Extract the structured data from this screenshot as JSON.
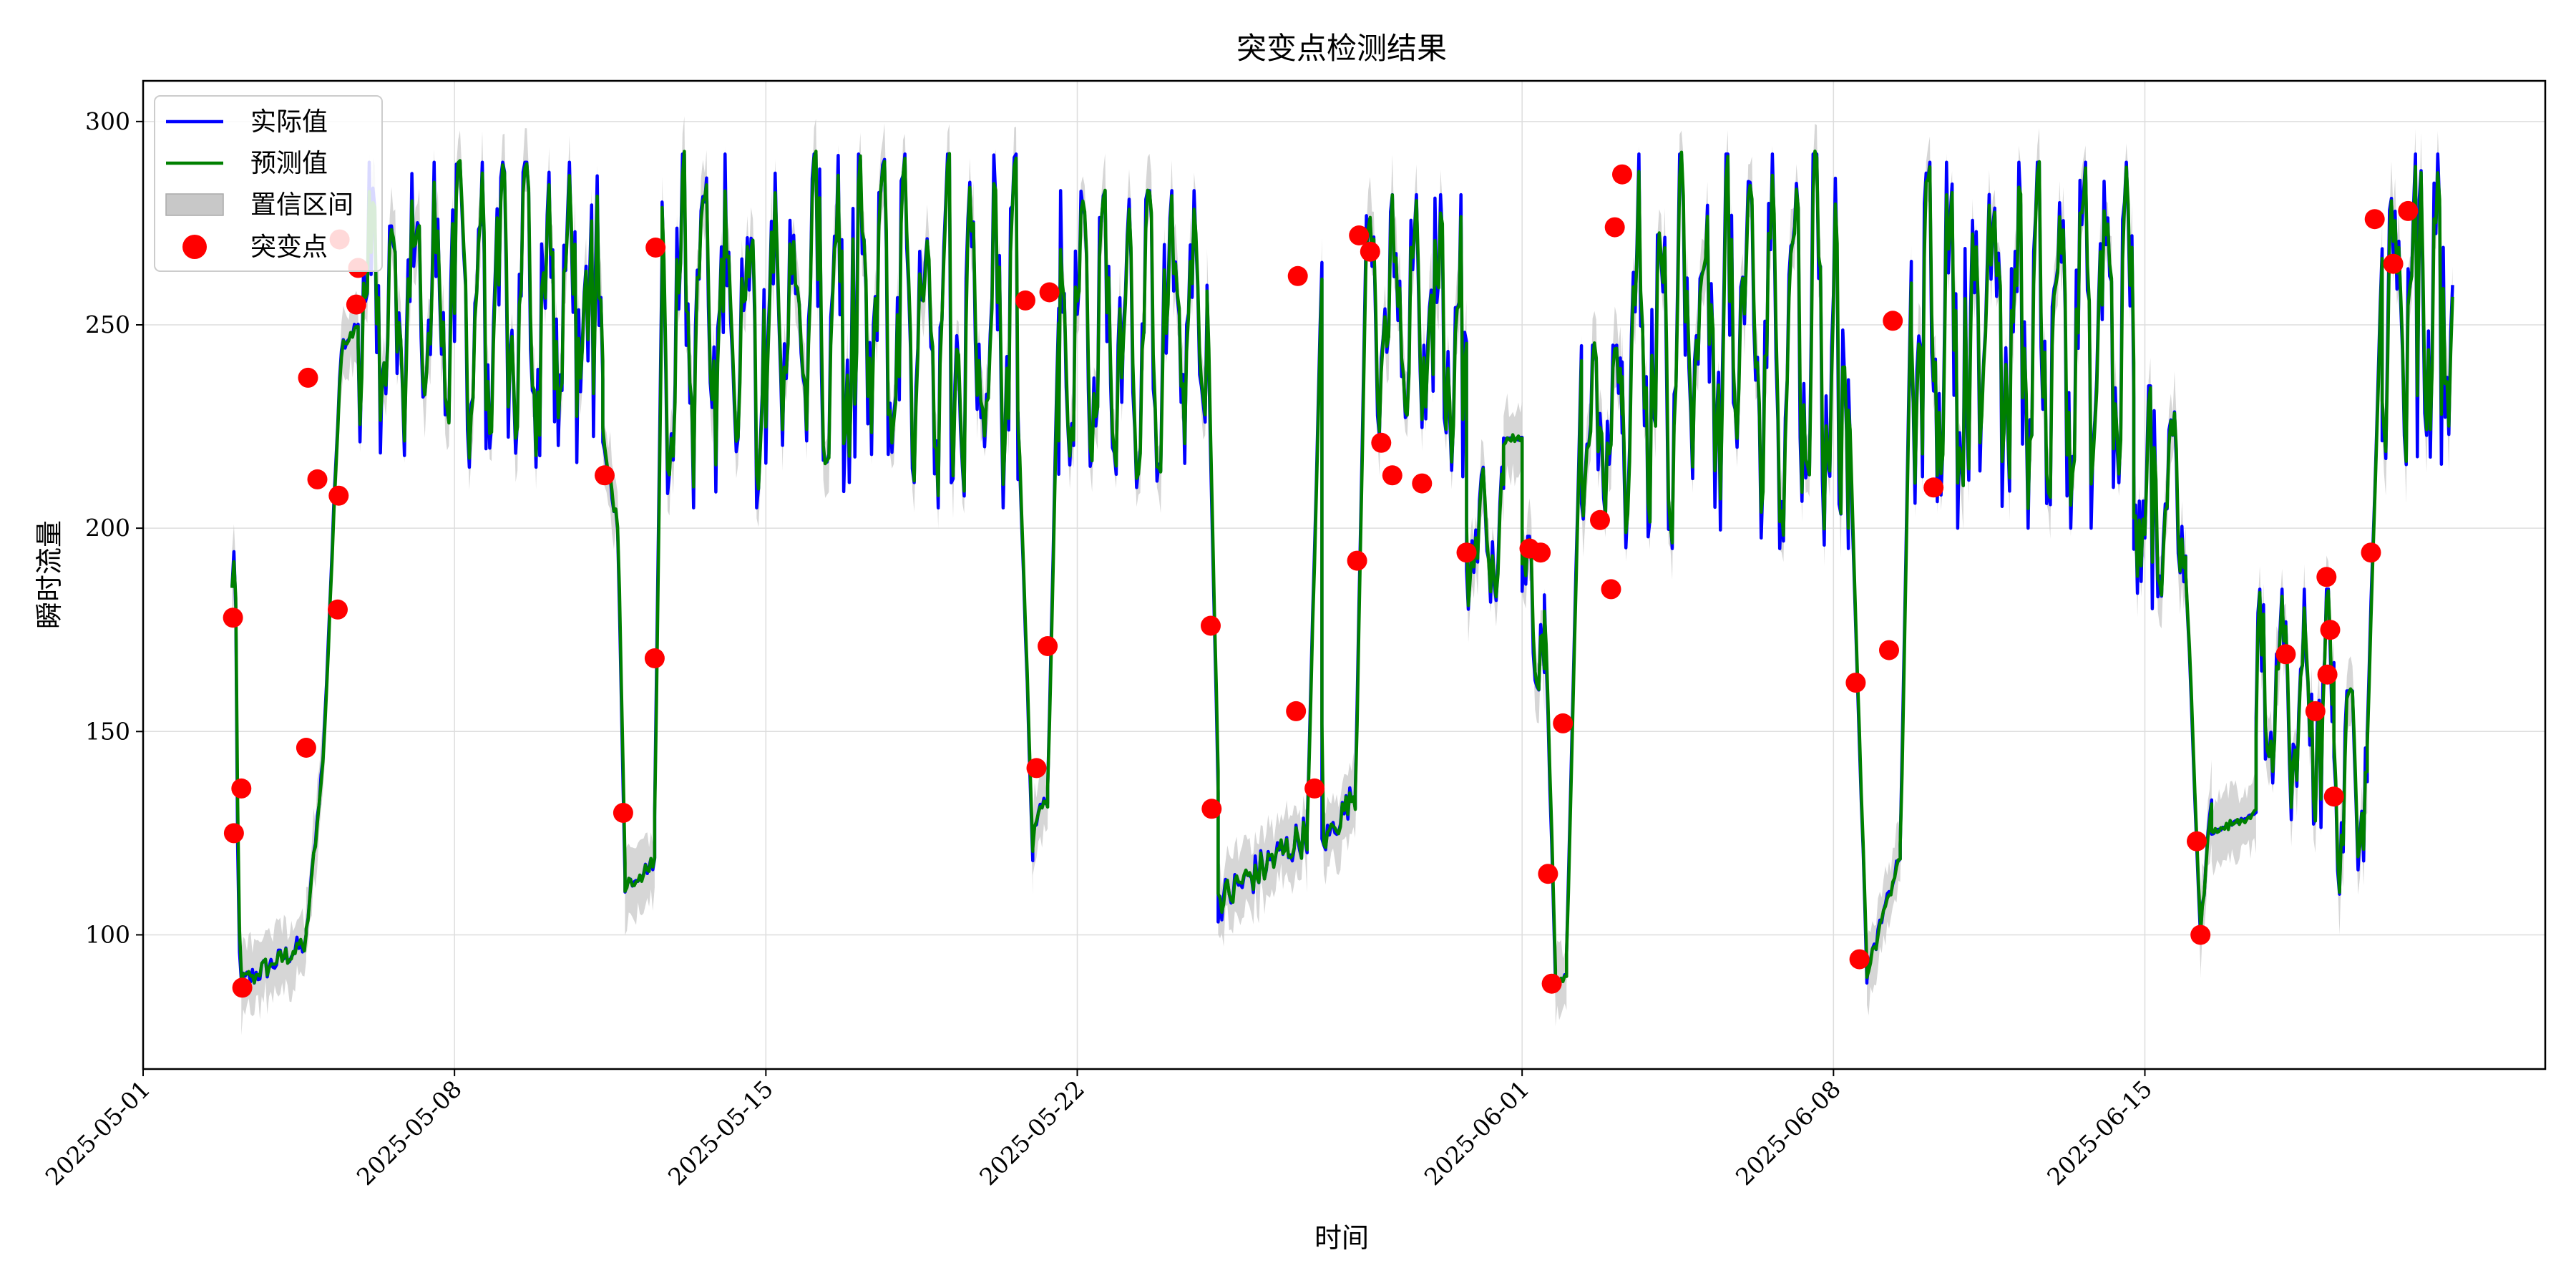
{
  "chart_data": {
    "type": "line",
    "title": "突变点检测结果",
    "xlabel": "时间",
    "ylabel": "瞬时流量",
    "xlim": [
      "2025-05-01",
      "2025-06-24"
    ],
    "ylim": [
      67,
      310
    ],
    "xticks": [
      "2025-05-01",
      "2025-05-08",
      "2025-05-15",
      "2025-05-22",
      "2025-06-01",
      "2025-06-08",
      "2025-06-15"
    ],
    "yticks": [
      100,
      150,
      200,
      250,
      300
    ],
    "grid": true,
    "legend": {
      "placement": "top-left",
      "entries": [
        "实际值",
        "预测值",
        "置信区间",
        "突变点"
      ]
    },
    "colors": {
      "actual": "#0000ff",
      "predicted": "#008000",
      "band": "#c8c8c8",
      "changepoint": "#ff0000"
    },
    "segments": [
      [
        "2025-05-03T00:00",
        "2025-05-03T05:00",
        "drop",
        [
          185,
          195,
          180,
          120,
          95,
          88
        ]
      ],
      [
        "2025-05-03T05:00",
        "2025-05-04T16:00",
        "low",
        [
          88,
          98
        ]
      ],
      [
        "2025-05-04T16:00",
        "2025-05-05T20:00",
        "ramp",
        [
          100,
          145,
          245,
          250
        ]
      ],
      [
        "2025-05-05T20:00",
        "2025-05-11T08:00",
        "osc",
        [
          215,
          290
        ]
      ],
      [
        "2025-05-11T08:00",
        "2025-05-11T20:00",
        "ramp",
        [
          220,
          212,
          200,
          115
        ]
      ],
      [
        "2025-05-11T20:00",
        "2025-05-12T12:00",
        "low",
        [
          112,
          118
        ]
      ],
      [
        "2025-05-12T12:00",
        "2025-05-12T16:00",
        "ramp",
        [
          130,
          270
        ]
      ],
      [
        "2025-05-12T16:00",
        "2025-05-20T16:00",
        "osc",
        [
          205,
          292
        ]
      ],
      [
        "2025-05-20T16:00",
        "2025-05-21T00:00",
        "ramp",
        [
          230,
          120
        ]
      ],
      [
        "2025-05-21T00:00",
        "2025-05-21T08:00",
        "low",
        [
          125,
          135
        ]
      ],
      [
        "2025-05-21T08:00",
        "2025-05-21T14:00",
        "ramp",
        [
          135,
          255
        ]
      ],
      [
        "2025-05-21T14:00",
        "2025-05-24T22:00",
        "osc",
        [
          210,
          283
        ]
      ],
      [
        "2025-05-24T22:00",
        "2025-05-25T04:00",
        "ramp",
        [
          260,
          135
        ]
      ],
      [
        "2025-05-25T04:00",
        "2025-05-27T04:00",
        "low",
        [
          108,
          125
        ]
      ],
      [
        "2025-05-27T04:00",
        "2025-05-27T12:00",
        "ramp",
        [
          125,
          265
        ]
      ],
      [
        "2025-05-27T12:00",
        "2025-05-28T06:00",
        "low",
        [
          122,
          135
        ]
      ],
      [
        "2025-05-28T06:00",
        "2025-05-28T12:00",
        "ramp",
        [
          135,
          275
        ]
      ],
      [
        "2025-05-28T12:00",
        "2025-05-30T18:00",
        "osc",
        [
          210,
          282
        ]
      ],
      [
        "2025-05-30T18:00",
        "2025-05-31T14:00",
        "osc",
        [
          180,
          215
        ]
      ],
      [
        "2025-05-31T14:00",
        "2025-06-01T00:00",
        "flat",
        [
          222,
          222
        ]
      ],
      [
        "2025-06-01T00:00",
        "2025-06-01T12:00",
        "osc",
        [
          160,
          198
        ]
      ],
      [
        "2025-06-01T12:00",
        "2025-06-01T18:00",
        "ramp",
        [
          185,
          90
        ]
      ],
      [
        "2025-06-01T18:00",
        "2025-06-02T00:00",
        "low",
        [
          88,
          90
        ]
      ],
      [
        "2025-06-02T00:00",
        "2025-06-02T08:00",
        "ramp",
        [
          95,
          245
        ]
      ],
      [
        "2025-06-02T08:00",
        "2025-06-03T06:00",
        "osc",
        [
          200,
          245
        ]
      ],
      [
        "2025-06-03T06:00",
        "2025-06-08T08:00",
        "osc",
        [
          195,
          292
        ]
      ],
      [
        "2025-06-08T08:00",
        "2025-06-08T18:00",
        "ramp",
        [
          235,
          90
        ]
      ],
      [
        "2025-06-08T18:00",
        "2025-06-09T12:00",
        "ramp",
        [
          90,
          120
        ]
      ],
      [
        "2025-06-09T12:00",
        "2025-06-09T18:00",
        "ramp",
        [
          120,
          265
        ]
      ],
      [
        "2025-06-09T18:00",
        "2025-06-14T18:00",
        "osc",
        [
          200,
          290
        ]
      ],
      [
        "2025-06-14T18:00",
        "2025-06-15T22:00",
        "osc",
        [
          180,
          235
        ]
      ],
      [
        "2025-06-15T22:00",
        "2025-06-16T06:00",
        "ramp",
        [
          190,
          100
        ]
      ],
      [
        "2025-06-16T06:00",
        "2025-06-16T12:00",
        "ramp",
        [
          100,
          135
        ]
      ],
      [
        "2025-06-16T12:00",
        "2025-06-17T12:00",
        "flat",
        [
          125,
          130
        ]
      ],
      [
        "2025-06-17T12:00",
        "2025-06-19T06:00",
        "osc",
        [
          125,
          185
        ]
      ],
      [
        "2025-06-19T06:00",
        "2025-06-20T00:00",
        "osc",
        [
          110,
          160
        ]
      ],
      [
        "2025-06-20T00:00",
        "2025-06-20T08:00",
        "ramp",
        [
          150,
          270
        ]
      ],
      [
        "2025-06-20T08:00",
        "2025-06-21T22:00",
        "osc",
        [
          215,
          292
        ]
      ]
    ],
    "changepoints": [
      [
        "2025-05-03T00:30",
        178
      ],
      [
        "2025-05-03T01:00",
        125
      ],
      [
        "2025-05-03T05:00",
        136
      ],
      [
        "2025-05-03T05:30",
        87
      ],
      [
        "2025-05-04T16:00",
        146
      ],
      [
        "2025-05-04T17:00",
        237
      ],
      [
        "2025-05-04T22:00",
        212
      ],
      [
        "2025-05-05T09:00",
        180
      ],
      [
        "2025-05-05T09:30",
        208
      ],
      [
        "2025-05-05T10:00",
        271
      ],
      [
        "2025-05-05T19:00",
        255
      ],
      [
        "2025-05-05T20:00",
        264
      ],
      [
        "2025-05-11T09:00",
        213
      ],
      [
        "2025-05-11T19:00",
        130
      ],
      [
        "2025-05-12T12:00",
        168
      ],
      [
        "2025-05-12T12:30",
        269
      ],
      [
        "2025-05-20T20:00",
        256
      ],
      [
        "2025-05-21T02:00",
        141
      ],
      [
        "2025-05-21T08:00",
        171
      ],
      [
        "2025-05-21T09:00",
        258
      ],
      [
        "2025-05-25T00:00",
        176
      ],
      [
        "2025-05-25T00:30",
        131
      ],
      [
        "2025-05-26T22:00",
        155
      ],
      [
        "2025-05-26T23:00",
        262
      ],
      [
        "2025-05-27T08:00",
        136
      ],
      [
        "2025-05-28T07:00",
        192
      ],
      [
        "2025-05-28T08:00",
        272
      ],
      [
        "2025-05-28T14:00",
        268
      ],
      [
        "2025-05-28T20:00",
        221
      ],
      [
        "2025-05-29T02:00",
        213
      ],
      [
        "2025-05-29T18:00",
        211
      ],
      [
        "2025-05-30T18:00",
        194
      ],
      [
        "2025-06-01T04:00",
        195
      ],
      [
        "2025-06-01T10:00",
        194
      ],
      [
        "2025-06-01T14:00",
        115
      ],
      [
        "2025-06-01T16:00",
        88
      ],
      [
        "2025-06-01T22:00",
        152
      ],
      [
        "2025-06-02T18:00",
        202
      ],
      [
        "2025-06-03T00:00",
        185
      ],
      [
        "2025-06-03T02:00",
        274
      ],
      [
        "2025-06-03T06:00",
        287
      ],
      [
        "2025-06-08T12:00",
        162
      ],
      [
        "2025-06-08T14:00",
        94
      ],
      [
        "2025-06-09T06:00",
        170
      ],
      [
        "2025-06-09T08:00",
        251
      ],
      [
        "2025-06-10T06:00",
        210
      ],
      [
        "2025-06-16T04:00",
        123
      ],
      [
        "2025-06-16T06:00",
        100
      ],
      [
        "2025-06-18T04:00",
        169
      ],
      [
        "2025-06-18T20:00",
        155
      ],
      [
        "2025-06-19T02:00",
        188
      ],
      [
        "2025-06-19T04:00",
        175
      ],
      [
        "2025-06-19T02:30",
        164
      ],
      [
        "2025-06-19T06:00",
        134
      ],
      [
        "2025-06-20T02:00",
        194
      ],
      [
        "2025-06-20T04:00",
        276
      ],
      [
        "2025-06-20T14:00",
        265
      ],
      [
        "2025-06-20T22:00",
        278
      ]
    ]
  }
}
